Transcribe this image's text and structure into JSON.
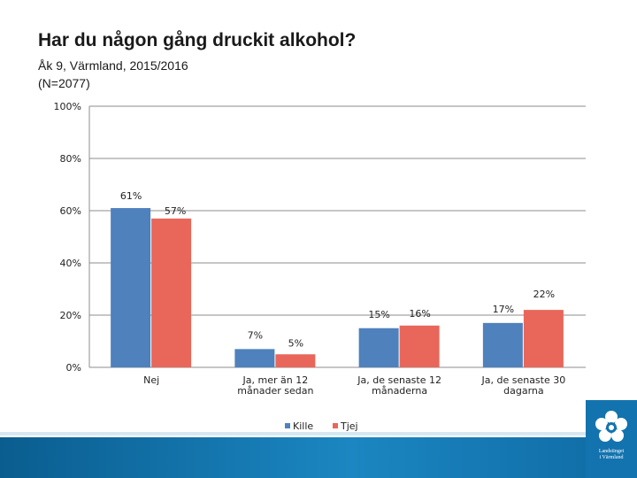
{
  "header": {
    "title": "Har du någon gång druckit alkohol?",
    "subtitle_line1": "Åk 9, Värmland, 2015/2016",
    "subtitle_line2": "(N=2077)"
  },
  "branding": {
    "org_line1": "Landstinget",
    "org_line2": "i Värmland",
    "logo_icon": "flower-icon",
    "accent_color": "#1373ae"
  },
  "chart_data": {
    "type": "bar",
    "title": "Har du någon gång druckit alkohol?",
    "xlabel": "",
    "ylabel": "",
    "ylim": [
      0,
      100
    ],
    "yticks": [
      "0%",
      "20%",
      "40%",
      "60%",
      "80%",
      "100%"
    ],
    "categories": [
      "Nej",
      "Ja, mer än 12 månader sedan",
      "Ja, de senaste 12 månaderna",
      "Ja, de senaste 30 dagarna"
    ],
    "category_lines": [
      [
        "Nej"
      ],
      [
        "Ja, mer än 12",
        "månader sedan"
      ],
      [
        "Ja, de senaste 12",
        "månaderna"
      ],
      [
        "Ja, de senaste 30",
        "dagarna"
      ]
    ],
    "series": [
      {
        "name": "Kille",
        "values": [
          61,
          7,
          15,
          17
        ],
        "labels": [
          "61%",
          "7%",
          "15%",
          "17%"
        ],
        "color": "#4f81bd"
      },
      {
        "name": "Tjej",
        "values": [
          57,
          5,
          16,
          22
        ],
        "labels": [
          "57%",
          "5%",
          "16%",
          "22%"
        ],
        "color": "#e8675a"
      }
    ],
    "grid": true,
    "legend": "bottom"
  }
}
